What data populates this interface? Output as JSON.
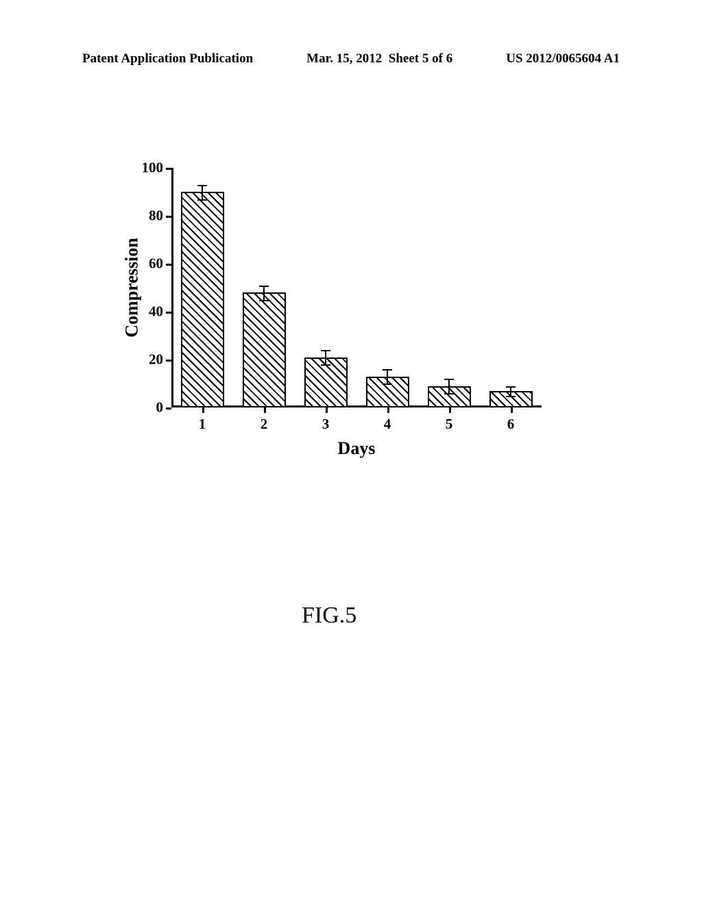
{
  "header": {
    "publication_type": "Patent Application Publication",
    "date": "Mar. 15, 2012",
    "sheet_info": "Sheet 5 of 6",
    "publication_number": "US 2012/0065604 A1"
  },
  "chart": {
    "type": "bar",
    "title": "",
    "xlabel": "Days",
    "ylabel": "Compression",
    "label_fontsize": 26,
    "tick_fontsize": 21,
    "ylim": [
      0,
      100
    ],
    "xlim": [
      0.5,
      6.5
    ],
    "ytick_step": 20,
    "y_ticks": [
      0,
      20,
      40,
      60,
      80,
      100
    ],
    "x_ticks": [
      1,
      2,
      3,
      4,
      5,
      6
    ],
    "categories": [
      "1",
      "2",
      "3",
      "4",
      "5",
      "6"
    ],
    "values": [
      90,
      48,
      21,
      13,
      9,
      7
    ],
    "error_values": [
      3,
      3,
      3,
      3,
      3,
      2
    ],
    "bar_width": 0.7,
    "bar_fill_pattern": "diagonal-hatch",
    "bar_border_color": "#000000",
    "bar_border_width": 2,
    "background_color": "#ffffff",
    "axis_color": "#000000",
    "axis_width": 3,
    "text_color": "#000000"
  },
  "figure_label": "FIG.5"
}
